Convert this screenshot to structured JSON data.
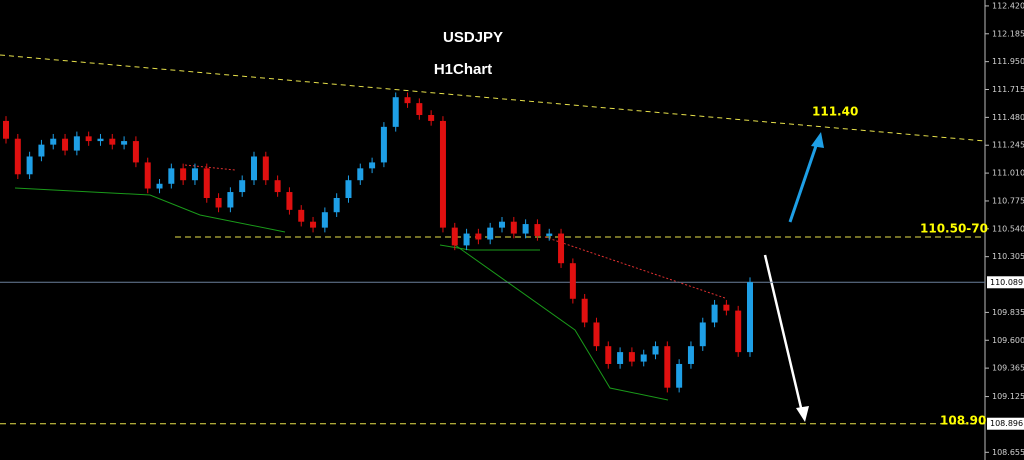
{
  "chart_data": {
    "type": "candlestick",
    "title": "USDJPY",
    "subtitle": "H1Chart",
    "up_color": "#1e9fe6",
    "down_color": "#e01010",
    "open": [
      111.45,
      111.3,
      111.0,
      111.15,
      111.25,
      111.3,
      111.2,
      111.32,
      111.28,
      111.3,
      111.25,
      111.28,
      111.1,
      110.88,
      110.92,
      111.05,
      110.95,
      111.05,
      110.8,
      110.72,
      110.85,
      110.95,
      111.15,
      110.95,
      110.85,
      110.7,
      110.6,
      110.55,
      110.68,
      110.8,
      110.95,
      111.05,
      111.1,
      111.4,
      111.65,
      111.6,
      111.5,
      111.45,
      110.55,
      110.4,
      110.5,
      110.45,
      110.55,
      110.6,
      110.5,
      110.58,
      110.48,
      110.5,
      110.25,
      109.95,
      109.75,
      109.55,
      109.4,
      109.5,
      109.42,
      109.48,
      109.55,
      109.2,
      109.4,
      109.55,
      109.75,
      109.9,
      109.85,
      109.5
    ],
    "high": [
      111.49,
      111.34,
      111.19,
      111.29,
      111.34,
      111.34,
      111.36,
      111.36,
      111.34,
      111.34,
      111.32,
      111.32,
      111.14,
      110.96,
      111.09,
      111.09,
      111.09,
      111.09,
      110.84,
      110.89,
      110.99,
      111.19,
      111.19,
      110.99,
      110.89,
      110.74,
      110.64,
      110.72,
      110.84,
      110.99,
      111.09,
      111.14,
      111.44,
      111.69,
      111.69,
      111.64,
      111.54,
      111.49,
      110.59,
      110.54,
      110.54,
      110.59,
      110.64,
      110.64,
      110.62,
      110.62,
      110.54,
      110.54,
      110.29,
      109.99,
      109.79,
      109.59,
      109.54,
      109.54,
      109.52,
      109.59,
      109.59,
      109.44,
      109.59,
      109.79,
      109.94,
      109.94,
      109.89,
      110.13
    ],
    "low": [
      111.26,
      110.96,
      110.96,
      111.11,
      111.21,
      111.16,
      111.16,
      111.24,
      111.24,
      111.21,
      111.21,
      111.06,
      110.84,
      110.84,
      110.88,
      110.91,
      110.91,
      110.76,
      110.68,
      110.68,
      110.81,
      110.91,
      110.91,
      110.81,
      110.66,
      110.56,
      110.51,
      110.51,
      110.64,
      110.76,
      110.91,
      111.01,
      111.06,
      111.36,
      111.56,
      111.46,
      111.41,
      110.51,
      110.36,
      110.36,
      110.41,
      110.41,
      110.51,
      110.46,
      110.46,
      110.44,
      110.44,
      110.21,
      109.91,
      109.71,
      109.51,
      109.36,
      109.36,
      109.38,
      109.38,
      109.44,
      109.16,
      109.16,
      109.36,
      109.51,
      109.71,
      109.81,
      109.46,
      109.46
    ],
    "close": [
      111.3,
      111.0,
      111.15,
      111.25,
      111.3,
      111.2,
      111.32,
      111.28,
      111.3,
      111.25,
      111.28,
      111.1,
      110.88,
      110.92,
      111.05,
      110.95,
      111.05,
      110.8,
      110.72,
      110.85,
      110.95,
      111.15,
      110.95,
      110.85,
      110.7,
      110.6,
      110.55,
      110.68,
      110.8,
      110.95,
      111.05,
      111.1,
      111.4,
      111.65,
      111.6,
      111.5,
      111.45,
      110.55,
      110.4,
      110.5,
      110.45,
      110.55,
      110.6,
      110.5,
      110.58,
      110.48,
      110.5,
      110.25,
      109.95,
      109.75,
      109.55,
      109.4,
      109.5,
      109.42,
      109.48,
      109.55,
      109.2,
      109.4,
      109.55,
      109.75,
      109.9,
      109.85,
      109.5,
      110.09
    ],
    "ylim": [
      108.59,
      112.47
    ],
    "yticks": [
      {
        "value": 112.42,
        "label": "112.420"
      },
      112.185,
      {
        "value": 111.95,
        "label": "111.950"
      },
      111.715,
      {
        "value": 111.48,
        "label": "111.480"
      },
      111.245,
      {
        "value": 111.01,
        "label": "111.010"
      },
      110.775,
      {
        "value": 110.54,
        "label": "110.540"
      },
      110.305,
      109.835,
      {
        "value": 109.6,
        "label": "109.600"
      },
      109.365,
      109.125,
      108.655
    ],
    "price_markers": [
      110.089,
      108.896
    ],
    "annotations": [
      "111.40",
      "110.50-70",
      "108.90"
    ]
  }
}
